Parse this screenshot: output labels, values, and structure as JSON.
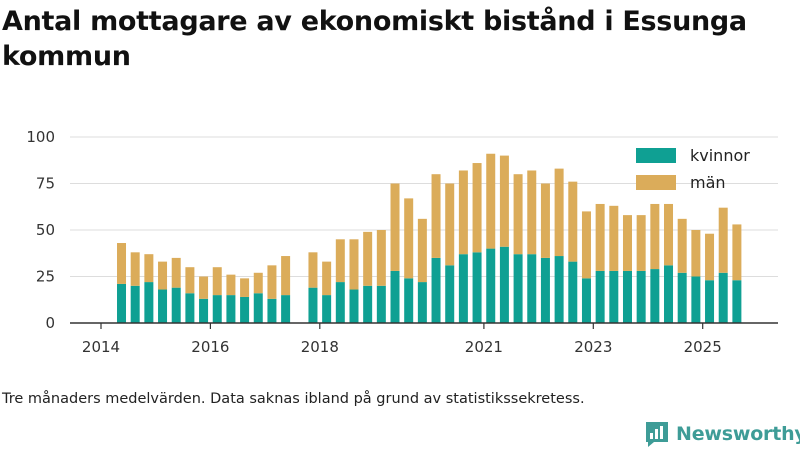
{
  "title": "Antal mottagare av ekonomiskt bistånd i Essunga kommun",
  "footnote": "Tre månaders medelvärden. Data saknas ibland på grund av statistikssekretess.",
  "brand": {
    "name": "Newsworthy",
    "color": "#3e9c97",
    "icon": "newsworthy-logo-icon"
  },
  "colors": {
    "kvinnor": "#0fa093",
    "man": "#dbac5a",
    "axis": "#333333",
    "grid": "#dddddd"
  },
  "chart_data": {
    "type": "bar",
    "stacked": true,
    "title": "Antal mottagare av ekonomiskt bistånd i Essunga kommun",
    "xlabel": "",
    "ylabel": "",
    "ylim": [
      0,
      100
    ],
    "yticks": [
      "0",
      "25",
      "50",
      "75",
      "100"
    ],
    "xticks": [
      "2014",
      "2016",
      "2018",
      "2021",
      "2023",
      "2025"
    ],
    "legend_position": "top-right",
    "categories": [
      "2014-Q2",
      "2014-Q3",
      "2014-Q4",
      "2015-Q1",
      "2015-Q2",
      "2015-Q3",
      "2015-Q4",
      "2016-Q1",
      "2016-Q2",
      "2016-Q3",
      "2016-Q4",
      "2017-Q1",
      "2017-Q2",
      "2017-Q3",
      "2017-Q4",
      "2018-Q1",
      "2018-Q2",
      "2018-Q3",
      "2018-Q4",
      "2019-Q1",
      "2019-Q2",
      "2019-Q3",
      "2019-Q4",
      "2020-Q1",
      "2020-Q2",
      "2020-Q3",
      "2020-Q4",
      "2021-Q1",
      "2021-Q2",
      "2021-Q3",
      "2021-Q4",
      "2022-Q1",
      "2022-Q2",
      "2022-Q3",
      "2022-Q4",
      "2023-Q1",
      "2023-Q2",
      "2023-Q3",
      "2023-Q4",
      "2024-Q1",
      "2024-Q2",
      "2024-Q3",
      "2024-Q4",
      "2025-Q1",
      "2025-Q2",
      "2025-Q3"
    ],
    "series": [
      {
        "name": "kvinnor",
        "values": [
          21,
          20,
          22,
          18,
          19,
          16,
          13,
          15,
          15,
          14,
          16,
          13,
          15,
          null,
          19,
          15,
          22,
          18,
          20,
          20,
          28,
          24,
          22,
          35,
          31,
          37,
          38,
          40,
          41,
          37,
          37,
          35,
          36,
          33,
          24,
          28,
          28,
          28,
          28,
          29,
          31,
          27,
          25,
          23,
          27,
          23
        ]
      },
      {
        "name": "män",
        "values": [
          22,
          18,
          15,
          15,
          16,
          14,
          12,
          15,
          11,
          10,
          11,
          18,
          21,
          null,
          19,
          18,
          23,
          27,
          29,
          30,
          47,
          43,
          34,
          45,
          44,
          45,
          48,
          51,
          49,
          43,
          45,
          40,
          47,
          43,
          36,
          36,
          35,
          30,
          30,
          35,
          33,
          29,
          25,
          25,
          35,
          30
        ]
      }
    ]
  }
}
